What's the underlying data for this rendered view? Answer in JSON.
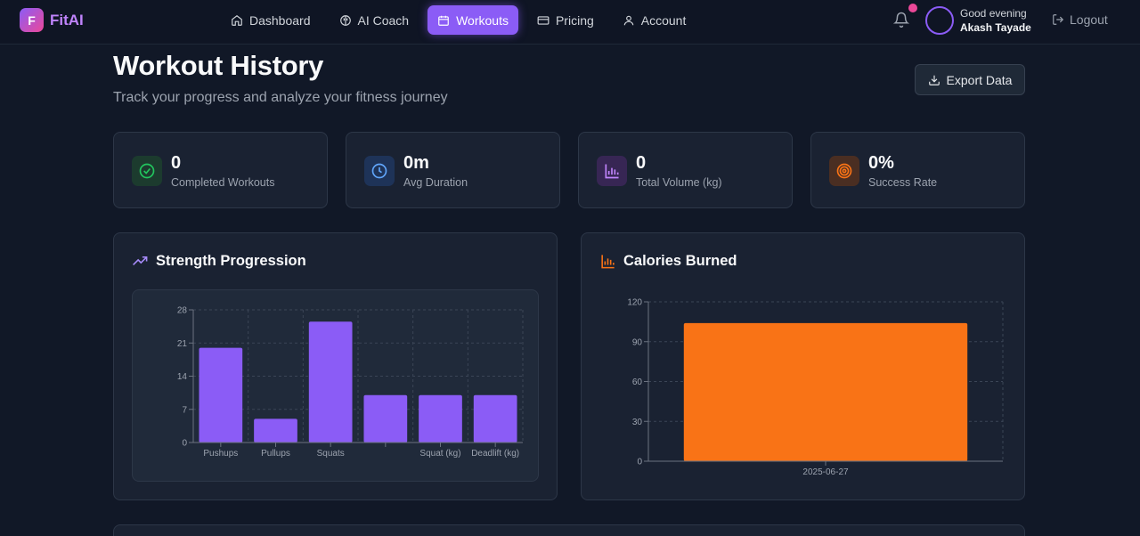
{
  "app": {
    "logo_letter": "F",
    "name": "FitAI"
  },
  "nav": {
    "items": [
      {
        "label": "Dashboard",
        "icon": "home-icon",
        "active": false
      },
      {
        "label": "AI Coach",
        "icon": "brain-icon",
        "active": false
      },
      {
        "label": "Workouts",
        "icon": "calendar-icon",
        "active": true
      },
      {
        "label": "Pricing",
        "icon": "credit-card-icon",
        "active": false
      },
      {
        "label": "Account",
        "icon": "user-icon",
        "active": false
      }
    ]
  },
  "user": {
    "greeting": "Good evening",
    "name": "Akash Tayade",
    "logout_label": "Logout",
    "has_notification": true
  },
  "header": {
    "title": "Workout History",
    "subtitle": "Track your progress and analyze your fitness journey",
    "export_label": "Export Data"
  },
  "stats": [
    {
      "value": "0",
      "label": "Completed Workouts",
      "icon": "check-circle-icon",
      "color": "#22c55e"
    },
    {
      "value": "0m",
      "label": "Avg Duration",
      "icon": "clock-icon",
      "color": "#3b82f6"
    },
    {
      "value": "0",
      "label": "Total Volume (kg)",
      "icon": "bar-chart-icon",
      "color": "#a855f7"
    },
    {
      "value": "0%",
      "label": "Success Rate",
      "icon": "target-icon",
      "color": "#f97316"
    }
  ],
  "colors": {
    "accent": "#8b5cf6",
    "bar_purple": "#8b5cf6",
    "bar_orange": "#f97316",
    "background": "#111827",
    "card": "#1a2232"
  },
  "chart_data": [
    {
      "type": "bar",
      "title": "Strength Progression",
      "categories": [
        "Pushups",
        "Pullups",
        "Squats",
        "",
        "Squat (kg)",
        "Deadlift (kg)"
      ],
      "values": [
        20,
        5,
        25.5,
        10,
        10,
        10
      ],
      "ylim": [
        0,
        28
      ],
      "yticks": [
        0,
        7,
        14,
        21,
        28
      ],
      "grid": true
    },
    {
      "type": "bar",
      "title": "Calories Burned",
      "categories": [
        "2025-06-27"
      ],
      "values": [
        104
      ],
      "ylim": [
        0,
        120
      ],
      "yticks": [
        0,
        30,
        60,
        90,
        120
      ],
      "grid": true
    }
  ]
}
